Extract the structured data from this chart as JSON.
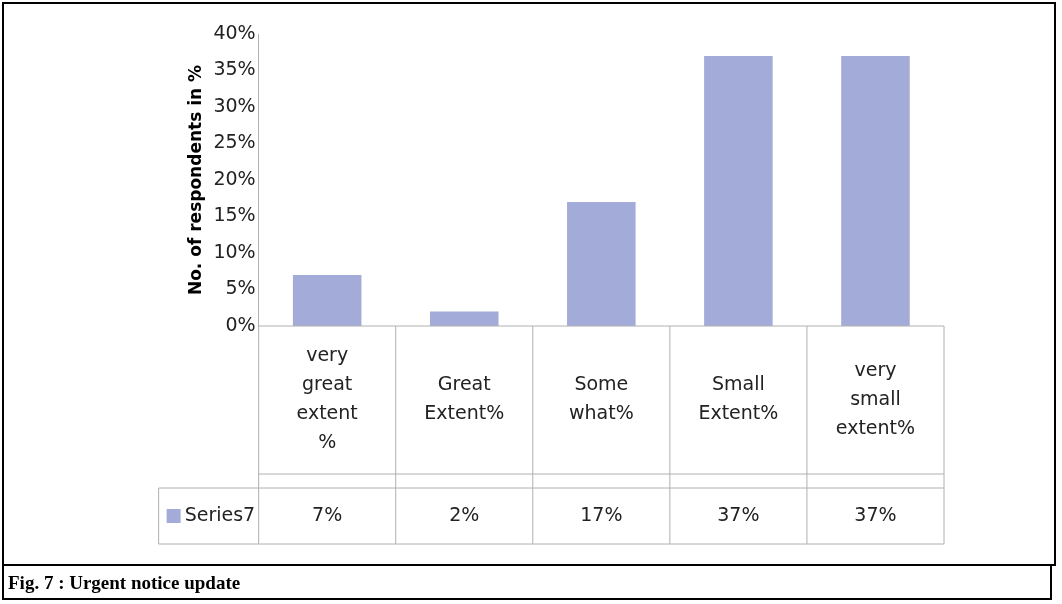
{
  "chart_data": {
    "type": "bar",
    "title": "Fig. 7 : Urgent notice update",
    "ylabel": "No. of respondents in %",
    "categories": [
      "very great extent %",
      "Great Extent%",
      "Some what%",
      "Small Extent%",
      "very small extent%"
    ],
    "series": [
      {
        "name": "Series7",
        "color": "#a3abd8",
        "values": [
          7,
          2,
          17,
          37,
          37
        ],
        "value_labels": [
          "7%",
          "2%",
          "17%",
          "37%",
          "37%"
        ]
      }
    ],
    "ylim": [
      0,
      40
    ],
    "yticks": [
      {
        "value": 0,
        "label": "0%"
      },
      {
        "value": 5,
        "label": "5%"
      },
      {
        "value": 10,
        "label": "10%"
      },
      {
        "value": 15,
        "label": "15%"
      },
      {
        "value": 20,
        "label": "20%"
      },
      {
        "value": 25,
        "label": "25%"
      },
      {
        "value": 30,
        "label": "30%"
      },
      {
        "value": 35,
        "label": "35%"
      },
      {
        "value": 40,
        "label": "40%"
      }
    ],
    "grid": false,
    "legend": "bottom"
  }
}
